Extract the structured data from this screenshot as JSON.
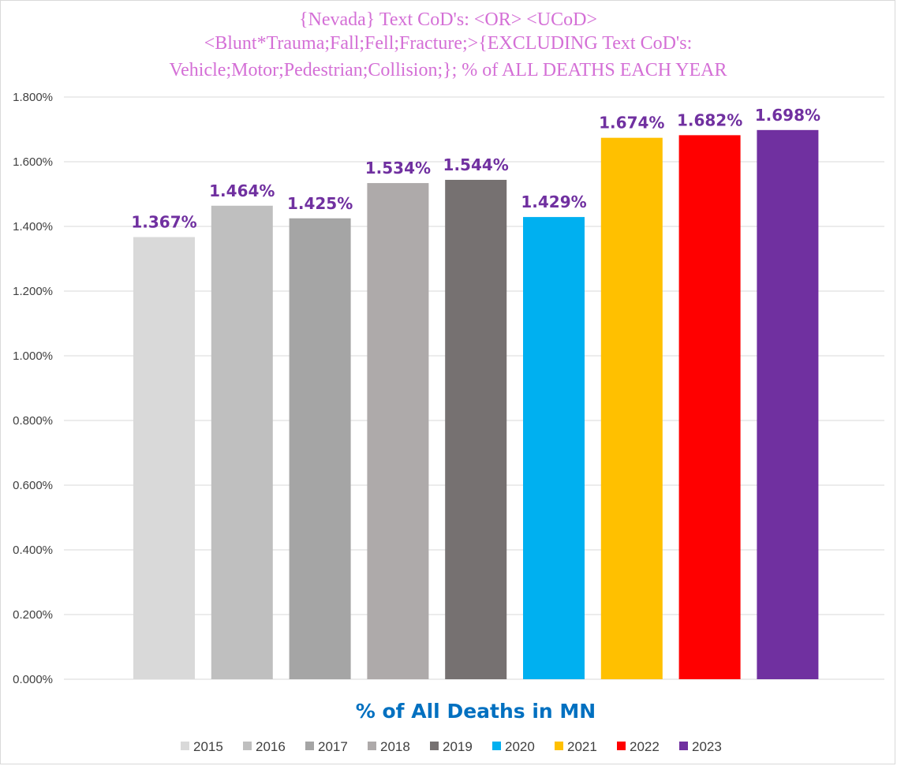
{
  "chart_data": {
    "type": "bar",
    "title_lines": [
      "{Nevada}   Text CoD's: <OR> <UCoD>",
      "<Blunt*Trauma;Fall;Fell;Fracture;>{EXCLUDING Text CoD's:",
      "Vehicle;Motor;Pedestrian;Collision;}; % of ALL DEATHS EACH YEAR"
    ],
    "xlabel": "% of All Deaths in MN",
    "ylabel": "",
    "ylim": [
      0,
      1.8
    ],
    "y_ticks": [
      0,
      0.2,
      0.4,
      0.6,
      0.8,
      1.0,
      1.2,
      1.4,
      1.6,
      1.8
    ],
    "y_tick_labels": [
      "0.000%",
      "0.200%",
      "0.400%",
      "0.600%",
      "0.800%",
      "1.000%",
      "1.200%",
      "1.400%",
      "1.600%",
      "1.800%"
    ],
    "grid": true,
    "legend_position": "bottom",
    "series": [
      {
        "name": "2015",
        "value": 1.367,
        "label": "1.367%",
        "color": "#d9d9d9"
      },
      {
        "name": "2016",
        "value": 1.464,
        "label": "1.464%",
        "color": "#bfbfbf"
      },
      {
        "name": "2017",
        "value": 1.425,
        "label": "1.425%",
        "color": "#a5a5a5"
      },
      {
        "name": "2018",
        "value": 1.534,
        "label": "1.534%",
        "color": "#aeaaaa"
      },
      {
        "name": "2019",
        "value": 1.544,
        "label": "1.544%",
        "color": "#767171"
      },
      {
        "name": "2020",
        "value": 1.429,
        "label": "1.429%",
        "color": "#00b0f0"
      },
      {
        "name": "2021",
        "value": 1.674,
        "label": "1.674%",
        "color": "#ffc000"
      },
      {
        "name": "2022",
        "value": 1.682,
        "label": "1.682%",
        "color": "#ff0000"
      },
      {
        "name": "2023",
        "value": 1.698,
        "label": "1.698%",
        "color": "#7030a0"
      }
    ]
  }
}
